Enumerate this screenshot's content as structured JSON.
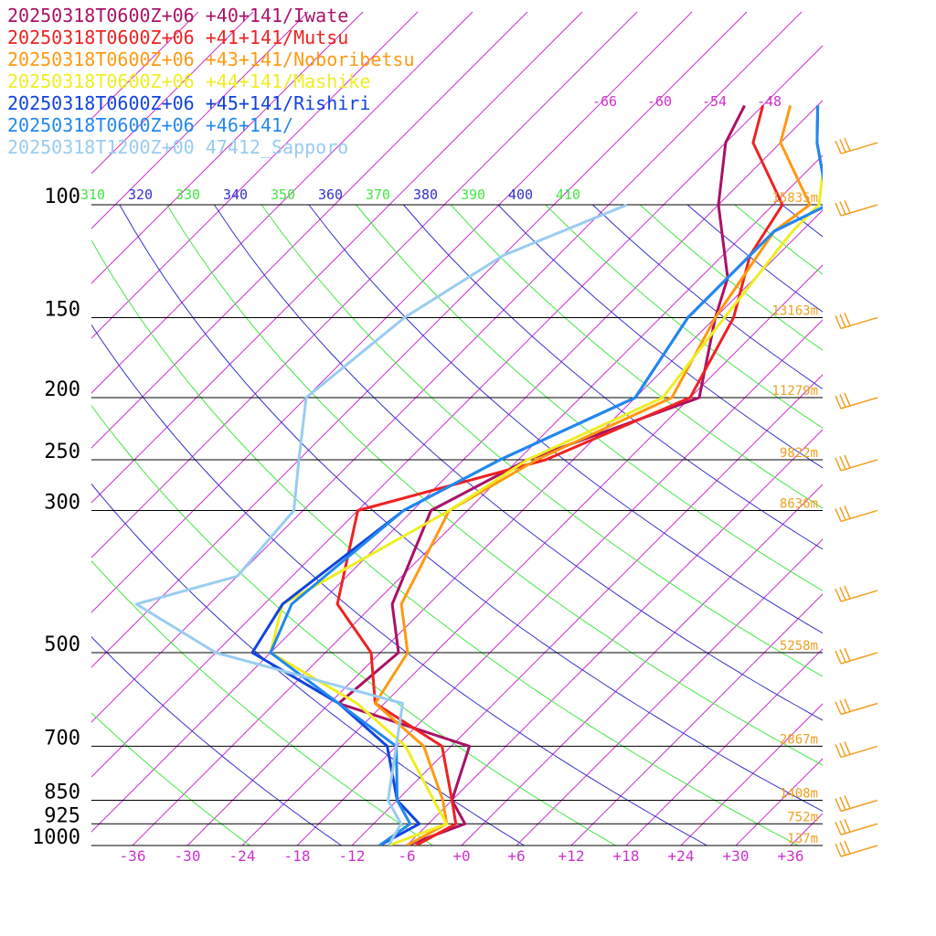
{
  "chart_data": {
    "type": "line",
    "title": "",
    "xlabel": "",
    "ylabel": "",
    "pressure_levels": [
      100,
      150,
      200,
      250,
      300,
      500,
      700,
      850,
      925,
      1000
    ],
    "temperature_ticks": [
      "-36",
      "-30",
      "-24",
      "-18",
      "-12",
      "-6",
      "+0",
      "+6",
      "+12",
      "+18",
      "+24",
      "+30",
      "+36"
    ],
    "temperature_tick_values": [
      -36,
      -30,
      -24,
      -18,
      -12,
      -6,
      0,
      6,
      12,
      18,
      24,
      30,
      36
    ],
    "height_labels": [
      {
        "p": 100,
        "label": "15835m"
      },
      {
        "p": 150,
        "label": "13163m"
      },
      {
        "p": 200,
        "label": "11279m"
      },
      {
        "p": 250,
        "label": "9822m"
      },
      {
        "p": 300,
        "label": "8636m"
      },
      {
        "p": 500,
        "label": "5258m"
      },
      {
        "p": 700,
        "label": "2867m"
      },
      {
        "p": 850,
        "label": "1408m"
      },
      {
        "p": 925,
        "label": "752m"
      },
      {
        "p": 1000,
        "label": "137m"
      }
    ],
    "isotherm_labels": [
      {
        "t": -66,
        "label": "-66"
      },
      {
        "t": -60,
        "label": "-60"
      },
      {
        "t": -54,
        "label": "-54"
      },
      {
        "t": -48,
        "label": "-48"
      }
    ],
    "theta_labels": [
      {
        "label": "310",
        "color": "#44e644"
      },
      {
        "label": "320",
        "color": "#3333cc"
      },
      {
        "label": "330",
        "color": "#44e644"
      },
      {
        "label": "340",
        "color": "#3333cc"
      },
      {
        "label": "350",
        "color": "#44e644"
      },
      {
        "label": "360",
        "color": "#3333cc"
      },
      {
        "label": "370",
        "color": "#44e644"
      },
      {
        "label": "380",
        "color": "#3333cc"
      },
      {
        "label": "390",
        "color": "#44e644"
      },
      {
        "label": "400",
        "color": "#3333cc"
      },
      {
        "label": "410",
        "color": "#44e644"
      }
    ],
    "colors": {
      "isotherm": "#cc33cc",
      "isobar": "#000000",
      "theta_blue": "#3333cc",
      "theta_green": "#44e644",
      "height": "#f0a020",
      "barb": "#f0a020"
    },
    "series": [
      {
        "name": "20250318T0600Z+06 +40+141/Iwate",
        "color": "#aa1166",
        "points": [
          [
            1000,
            -6
          ],
          [
            925,
            -2
          ],
          [
            850,
            -6
          ],
          [
            700,
            -10
          ],
          [
            600,
            -29
          ],
          [
            500,
            -28
          ],
          [
            420,
            -34
          ],
          [
            300,
            -40
          ],
          [
            250,
            -35
          ],
          [
            200,
            -23
          ],
          [
            150,
            -30
          ],
          [
            130,
            -33
          ],
          [
            100,
            -42
          ],
          [
            80,
            -48
          ],
          [
            70,
            -50
          ]
        ]
      },
      {
        "name": "20250318T0600Z+06 +41+141/Mutsu",
        "color": "#ee2222",
        "points": [
          [
            1000,
            -5
          ],
          [
            925,
            -3
          ],
          [
            850,
            -6
          ],
          [
            700,
            -13
          ],
          [
            600,
            -25
          ],
          [
            500,
            -31
          ],
          [
            420,
            -40
          ],
          [
            300,
            -48
          ],
          [
            250,
            -33
          ],
          [
            200,
            -24
          ],
          [
            150,
            -28
          ],
          [
            120,
            -33
          ],
          [
            100,
            -35
          ],
          [
            80,
            -45
          ],
          [
            70,
            -48
          ]
        ]
      },
      {
        "name": "20250318T0600Z+06 +43+141/Noboribetsu",
        "color": "#ff9911",
        "points": [
          [
            1000,
            -6
          ],
          [
            925,
            -4
          ],
          [
            850,
            -7
          ],
          [
            700,
            -15
          ],
          [
            600,
            -25
          ],
          [
            500,
            -27
          ],
          [
            420,
            -33
          ],
          [
            300,
            -38
          ],
          [
            250,
            -34
          ],
          [
            200,
            -26
          ],
          [
            150,
            -30
          ],
          [
            110,
            -33
          ],
          [
            100,
            -32
          ],
          [
            80,
            -42
          ],
          [
            70,
            -45
          ]
        ]
      },
      {
        "name": "20250318T0600Z+06 +44+141/Mashike",
        "color": "#eeee22",
        "points": [
          [
            1000,
            -8
          ],
          [
            925,
            -4
          ],
          [
            850,
            -8
          ],
          [
            700,
            -17
          ],
          [
            600,
            -27
          ],
          [
            500,
            -42
          ],
          [
            420,
            -46
          ],
          [
            300,
            -38
          ],
          [
            250,
            -35
          ],
          [
            200,
            -27
          ],
          [
            150,
            -29
          ],
          [
            110,
            -31
          ],
          [
            100,
            -31
          ],
          [
            80,
            -37
          ],
          [
            70,
            -41
          ]
        ]
      },
      {
        "name": "20250318T0600Z+06 +45+141/Rishiri",
        "color": "#1144dd",
        "points": [
          [
            1000,
            -9
          ],
          [
            925,
            -7
          ],
          [
            850,
            -12
          ],
          [
            700,
            -19
          ],
          [
            600,
            -29
          ],
          [
            500,
            -44
          ],
          [
            420,
            -46
          ],
          [
            300,
            -43
          ],
          [
            250,
            -38
          ],
          [
            200,
            -30
          ],
          [
            150,
            -33
          ],
          [
            110,
            -33
          ],
          [
            100,
            -30
          ],
          [
            80,
            -38
          ],
          [
            70,
            -42
          ]
        ]
      },
      {
        "name": "20250318T0600Z+06 +46+141/",
        "color": "#2288ee",
        "points": [
          [
            1000,
            -9
          ],
          [
            925,
            -8
          ],
          [
            850,
            -12
          ],
          [
            700,
            -18
          ],
          [
            600,
            -29
          ],
          [
            500,
            -42
          ],
          [
            420,
            -45
          ],
          [
            300,
            -43
          ],
          [
            250,
            -38
          ],
          [
            200,
            -30
          ],
          [
            150,
            -33
          ],
          [
            110,
            -33
          ],
          [
            100,
            -30
          ],
          [
            80,
            -38
          ],
          [
            70,
            -42
          ]
        ]
      },
      {
        "name": "20250318T1200Z+00 47412_Sapporo",
        "color": "#99ccf0",
        "points": [
          [
            1000,
            -8
          ],
          [
            925,
            -9
          ],
          [
            850,
            -13
          ],
          [
            700,
            -18
          ],
          [
            600,
            -22
          ],
          [
            500,
            -48
          ],
          [
            420,
            -62
          ],
          [
            380,
            -54
          ],
          [
            300,
            -55
          ],
          [
            250,
            -60
          ],
          [
            200,
            -66
          ],
          [
            150,
            -64
          ],
          [
            120,
            -60
          ],
          [
            100,
            -52
          ]
        ]
      }
    ],
    "wind_barbs": [
      {
        "p": 1000
      },
      {
        "p": 925
      },
      {
        "p": 850
      },
      {
        "p": 700
      },
      {
        "p": 600
      },
      {
        "p": 500
      },
      {
        "p": 400
      },
      {
        "p": 300
      },
      {
        "p": 250
      },
      {
        "p": 200
      },
      {
        "p": 150
      },
      {
        "p": 100
      },
      {
        "p": 80
      }
    ]
  }
}
